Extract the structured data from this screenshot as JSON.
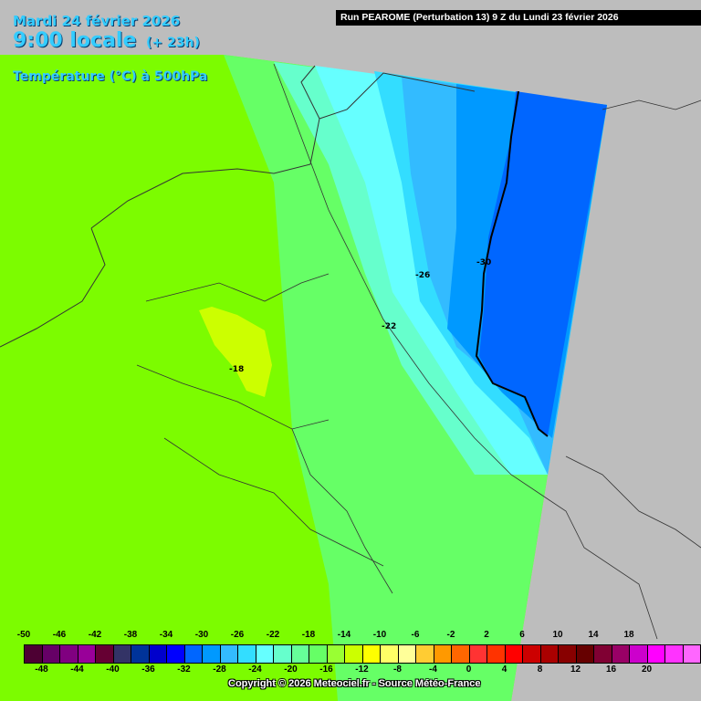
{
  "header": {
    "date": "Mardi 24 février 2026",
    "local_time": "9:00 locale",
    "offset": "(+ 23h)",
    "variable": "Température (°C) à 500hPa",
    "run": "Run PEAROME (Perturbation 13) 9 Z du Lundi 23 février 2026"
  },
  "map_labels": {
    "iso_m30": "-30",
    "iso_m26": "-26",
    "iso_m22": "-22",
    "iso_m18": "-18"
  },
  "legend": {
    "colors": [
      "#4d0033",
      "#660066",
      "#800080",
      "#990099",
      "#660033",
      "#333366",
      "#003399",
      "#0000cc",
      "#0000ff",
      "#0066ff",
      "#0099ff",
      "#33bbff",
      "#33ddff",
      "#66ffff",
      "#66ffcc",
      "#66ff99",
      "#66ff66",
      "#99ff33",
      "#ccff00",
      "#ffff00",
      "#ffff66",
      "#ffff99",
      "#ffcc33",
      "#ff9900",
      "#ff6600",
      "#ff3333",
      "#ff3300",
      "#ff0000",
      "#cc0000",
      "#aa0000",
      "#880000",
      "#660000",
      "#800033",
      "#990066",
      "#cc00cc",
      "#ff00ff",
      "#ff33ff",
      "#ff66ff",
      "#ff99ff"
    ],
    "top_labels": [
      "-50",
      "-46",
      "-42",
      "-38",
      "-34",
      "-30",
      "-26",
      "-22",
      "-18",
      "-14",
      "-10",
      "-6",
      "-2",
      "2",
      "6",
      "10",
      "14",
      "18"
    ],
    "bottom_labels": [
      "-48",
      "-44",
      "-40",
      "-36",
      "-32",
      "-28",
      "-24",
      "-20",
      "-16",
      "-12",
      "-8",
      "-4",
      "0",
      "4",
      "8",
      "12",
      "16",
      "20"
    ]
  },
  "copyright": "Copyright © 2026 Meteociel.fr - Source Météo-France"
}
